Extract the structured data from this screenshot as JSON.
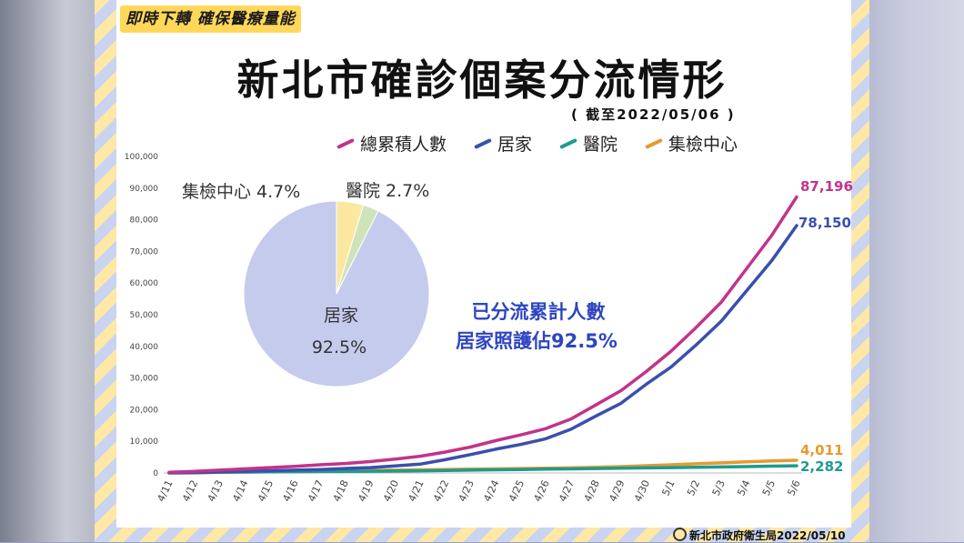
{
  "header": {
    "tag": "即時下轉 確保醫療量能",
    "title": "新北市確診個案分流情形",
    "date": "( 截至2022/05/06 )"
  },
  "annotation": {
    "line1": "已分流累計人數",
    "line2": "居家照護佔92.5%"
  },
  "credit": "新北市政府衛生局2022/05/10",
  "colors": {
    "total": "#c2338a",
    "home": "#3a4fae",
    "hospital": "#1f9a8e",
    "center": "#e69a2e",
    "pie_home": "#c5cbed",
    "pie_center": "#fbe7a0",
    "pie_hospital": "#cfe3b8"
  },
  "chart_data": [
    {
      "type": "line",
      "categories": [
        "4/11",
        "4/12",
        "4/13",
        "4/14",
        "4/15",
        "4/16",
        "4/17",
        "4/18",
        "4/19",
        "4/20",
        "4/21",
        "4/22",
        "4/23",
        "4/24",
        "4/25",
        "4/26",
        "4/27",
        "4/28",
        "4/29",
        "4/30",
        "5/1",
        "5/2",
        "5/3",
        "5/4",
        "5/5",
        "5/6"
      ],
      "ylim": [
        0,
        100000
      ],
      "yticks": [
        "0",
        "10,000",
        "20,000",
        "30,000",
        "40,000",
        "50,000",
        "60,000",
        "70,000",
        "80,000",
        "90,000",
        "100,000"
      ],
      "series": [
        {
          "name": "總累積人數",
          "color": "#c2338a",
          "end_label": "87,196",
          "values": [
            200,
            500,
            900,
            1300,
            1700,
            2100,
            2600,
            3000,
            3600,
            4400,
            5300,
            6600,
            8200,
            10200,
            12000,
            14000,
            17000,
            21500,
            26000,
            32000,
            38500,
            46000,
            54000,
            64500,
            75000,
            87196
          ]
        },
        {
          "name": "居家",
          "color": "#3a4fae",
          "end_label": "78,150",
          "values": [
            0,
            100,
            300,
            500,
            700,
            900,
            1100,
            1400,
            1700,
            2200,
            2800,
            4200,
            5800,
            7500,
            9000,
            10800,
            13800,
            18000,
            22000,
            28000,
            33500,
            40500,
            48000,
            57500,
            67000,
            78150
          ]
        },
        {
          "name": "醫院",
          "color": "#1f9a8e",
          "end_label": "2,282",
          "values": [
            150,
            200,
            250,
            300,
            350,
            400,
            450,
            500,
            550,
            600,
            700,
            800,
            900,
            1000,
            1100,
            1200,
            1300,
            1400,
            1500,
            1600,
            1700,
            1800,
            1900,
            2000,
            2150,
            2282
          ]
        },
        {
          "name": "集檢中心",
          "color": "#e69a2e",
          "end_label": "4,011",
          "values": [
            50,
            100,
            200,
            300,
            400,
            500,
            600,
            700,
            800,
            900,
            1000,
            1100,
            1200,
            1300,
            1400,
            1500,
            1600,
            1800,
            2000,
            2300,
            2600,
            2900,
            3200,
            3500,
            3800,
            4011
          ]
        }
      ]
    },
    {
      "type": "pie",
      "slices": [
        {
          "label": "居家",
          "value": 92.5,
          "text": "92.5%"
        },
        {
          "label": "集檢中心",
          "value": 4.7,
          "text": "集檢中心 4.7%"
        },
        {
          "label": "醫院",
          "value": 2.7,
          "text": "醫院 2.7%"
        }
      ]
    }
  ]
}
